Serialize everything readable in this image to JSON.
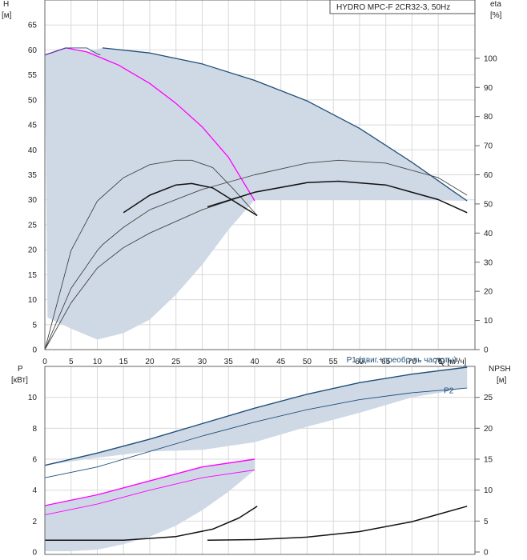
{
  "title": "HYDRO MPC-F 2CR32-3, 50Hz",
  "colors": {
    "curve_dark": "#1f4e79",
    "curve_black": "#111111",
    "curve_magenta": "#ff00ff",
    "band": "#cfd9e6",
    "grid": "#d9d9d9",
    "axis": "#666666"
  },
  "chart_data": [
    {
      "type": "line",
      "name": "head",
      "xlabel": "Q [м³/ч]",
      "ylabel_left": "H\n[м]",
      "ylabel_right": "eta\n[%]",
      "x_ticks": [
        0,
        5,
        10,
        15,
        20,
        25,
        30,
        35,
        40,
        45,
        50,
        55,
        60,
        65,
        70,
        75
      ],
      "y_ticks_left": [
        0,
        5,
        10,
        15,
        20,
        25,
        30,
        35,
        40,
        45,
        50,
        55,
        60,
        65
      ],
      "y_ticks_right": [
        0,
        10,
        20,
        30,
        40,
        50,
        60,
        70,
        80,
        90,
        100
      ],
      "xlim": [
        0,
        82
      ],
      "ylim_left": [
        0,
        70
      ],
      "ylim_right": [
        0,
        120
      ],
      "grid": true,
      "series": [
        {
          "role": "head",
          "axis": "left",
          "color": "#1f4e79",
          "width": 1.3,
          "x": [
            11,
            20,
            30,
            40,
            50,
            60,
            70,
            78,
            80.5
          ],
          "y": [
            60.4,
            59.4,
            57.2,
            53.9,
            49.8,
            44.3,
            37.5,
            31.6,
            29.8
          ]
        },
        {
          "role": "head",
          "axis": "left",
          "color": "#ff00ff",
          "width": 1.3,
          "x": [
            0,
            4,
            8,
            14,
            20,
            25,
            30,
            35,
            40
          ],
          "y": [
            59,
            60.4,
            59.6,
            57,
            53.3,
            49.3,
            44.6,
            38.5,
            29.8
          ]
        },
        {
          "role": "head",
          "axis": "left",
          "color": "#1f4e79",
          "width": 0.9,
          "x": [
            0,
            4,
            8,
            10,
            10.6
          ],
          "y": [
            59,
            60.4,
            60.4,
            59.2,
            59
          ]
        },
        {
          "role": "efficiency",
          "axis": "right",
          "color": "#444444",
          "width": 0.9,
          "x": [
            0,
            5,
            10,
            15,
            20,
            25,
            28,
            32,
            36,
            40.5
          ],
          "y": [
            0,
            34,
            51,
            59,
            63.5,
            65,
            65,
            62.5,
            55,
            46
          ]
        },
        {
          "role": "efficiency",
          "axis": "right",
          "color": "#111111",
          "width": 1.5,
          "x": [
            15,
            20,
            25,
            28,
            32,
            36,
            40.5
          ],
          "y": [
            47,
            53,
            56.5,
            57,
            55.5,
            51,
            46
          ]
        },
        {
          "role": "efficiency",
          "axis": "right",
          "color": "#444444",
          "width": 0.9,
          "x": [
            0,
            5,
            10,
            11,
            15,
            20,
            30,
            40,
            50,
            56,
            65,
            75,
            80.5
          ],
          "y": [
            0,
            21,
            34,
            36,
            42,
            48,
            55,
            60,
            64,
            65,
            64,
            59,
            53
          ]
        },
        {
          "role": "efficiency",
          "axis": "right",
          "color": "#444444",
          "width": 0.9,
          "x": [
            0,
            5,
            10,
            15,
            20,
            30,
            40,
            50,
            56,
            65,
            75,
            80.5
          ],
          "y": [
            0,
            16,
            28,
            35,
            40,
            48,
            54,
            57.3,
            57.8,
            56.5,
            51.5,
            47
          ]
        },
        {
          "role": "efficiency",
          "axis": "right",
          "color": "#111111",
          "width": 1.5,
          "x": [
            31,
            40,
            50,
            56,
            65,
            75,
            80.5
          ],
          "y": [
            49,
            54,
            57.3,
            57.8,
            56.5,
            51.5,
            47
          ]
        }
      ],
      "band": {
        "x": [
          0,
          4,
          8,
          11,
          20,
          30,
          40,
          50,
          60,
          70,
          78,
          80.5,
          80.5,
          70,
          60,
          50,
          40,
          35,
          30,
          25,
          20,
          15,
          10,
          5,
          0.5,
          0
        ],
        "y": [
          59,
          60.4,
          59.6,
          60.4,
          59.4,
          57.2,
          53.9,
          49.8,
          44.3,
          37.5,
          31.6,
          29.8,
          29.8,
          30,
          30,
          30,
          30,
          24,
          17,
          11,
          6,
          3.3,
          2,
          4.2,
          6.4,
          59
        ]
      }
    },
    {
      "type": "line",
      "name": "power",
      "ylabel_left": "P\n[кВт]",
      "ylabel_right": "NPSH\n[м]",
      "y_ticks_left": [
        0,
        2,
        4,
        6,
        8,
        10
      ],
      "y_ticks_right": [
        0,
        5,
        10,
        15,
        20,
        25
      ],
      "xlim": [
        0,
        82
      ],
      "ylim_left": [
        0,
        12
      ],
      "ylim_right": [
        0,
        30
      ],
      "grid": true,
      "labels": [
        {
          "text": "P1 (двиг.+преобр-ль частоты)",
          "x": 68,
          "y": 12.1
        },
        {
          "text": "P2",
          "x": 77,
          "y": 10.1
        }
      ],
      "series": [
        {
          "role": "P1",
          "axis": "left",
          "color": "#1f4e79",
          "width": 1.4,
          "x": [
            0,
            10,
            20,
            30,
            40,
            50,
            60,
            70,
            80.5
          ],
          "y": [
            5.6,
            6.4,
            7.3,
            8.3,
            9.3,
            10.2,
            10.95,
            11.5,
            11.95
          ]
        },
        {
          "role": "P2",
          "axis": "left",
          "color": "#1f4e79",
          "width": 0.9,
          "x": [
            0,
            10,
            20,
            30,
            40,
            50,
            60,
            70,
            80.5
          ],
          "y": [
            4.8,
            5.5,
            6.5,
            7.5,
            8.4,
            9.2,
            9.85,
            10.3,
            10.6
          ]
        },
        {
          "role": "P1",
          "axis": "left",
          "color": "#ff00ff",
          "width": 1.4,
          "x": [
            0,
            10,
            20,
            30,
            40
          ],
          "y": [
            3,
            3.7,
            4.6,
            5.5,
            6
          ]
        },
        {
          "role": "P2",
          "axis": "left",
          "color": "#ff00ff",
          "width": 0.9,
          "x": [
            0,
            10,
            20,
            30,
            40
          ],
          "y": [
            2.4,
            3.1,
            4,
            4.8,
            5.3
          ]
        },
        {
          "role": "NPSH",
          "axis": "right",
          "color": "#111111",
          "width": 1.5,
          "x": [
            0,
            15,
            25,
            32,
            37,
            40.5
          ],
          "y": [
            1.9,
            1.9,
            2.5,
            3.7,
            5.5,
            7.4
          ]
        },
        {
          "role": "NPSH",
          "axis": "right",
          "color": "#111111",
          "width": 1.5,
          "x": [
            31,
            40,
            50,
            60,
            70,
            80.5
          ],
          "y": [
            1.9,
            2.0,
            2.4,
            3.3,
            4.9,
            7.4
          ]
        }
      ],
      "bands": [
        {
          "x": [
            0,
            10,
            20,
            30,
            40,
            50,
            60,
            70,
            80.5,
            80.5,
            70,
            60,
            50,
            40,
            30,
            20,
            10,
            0
          ],
          "y": [
            5.6,
            6.4,
            7.3,
            8.3,
            9.3,
            10.2,
            10.95,
            11.5,
            11.95,
            10.6,
            10.0,
            9.0,
            8.1,
            7.1,
            6.6,
            6.5,
            6.1,
            5.6
          ]
        },
        {
          "x": [
            0,
            10,
            20,
            30,
            40,
            40,
            35,
            30,
            25,
            20,
            15,
            10,
            5,
            0
          ],
          "y": [
            3,
            3.7,
            4.6,
            5.5,
            6,
            5.3,
            3.9,
            2.7,
            1.7,
            1.0,
            0.5,
            0.15,
            0.05,
            0.05
          ]
        }
      ]
    }
  ]
}
